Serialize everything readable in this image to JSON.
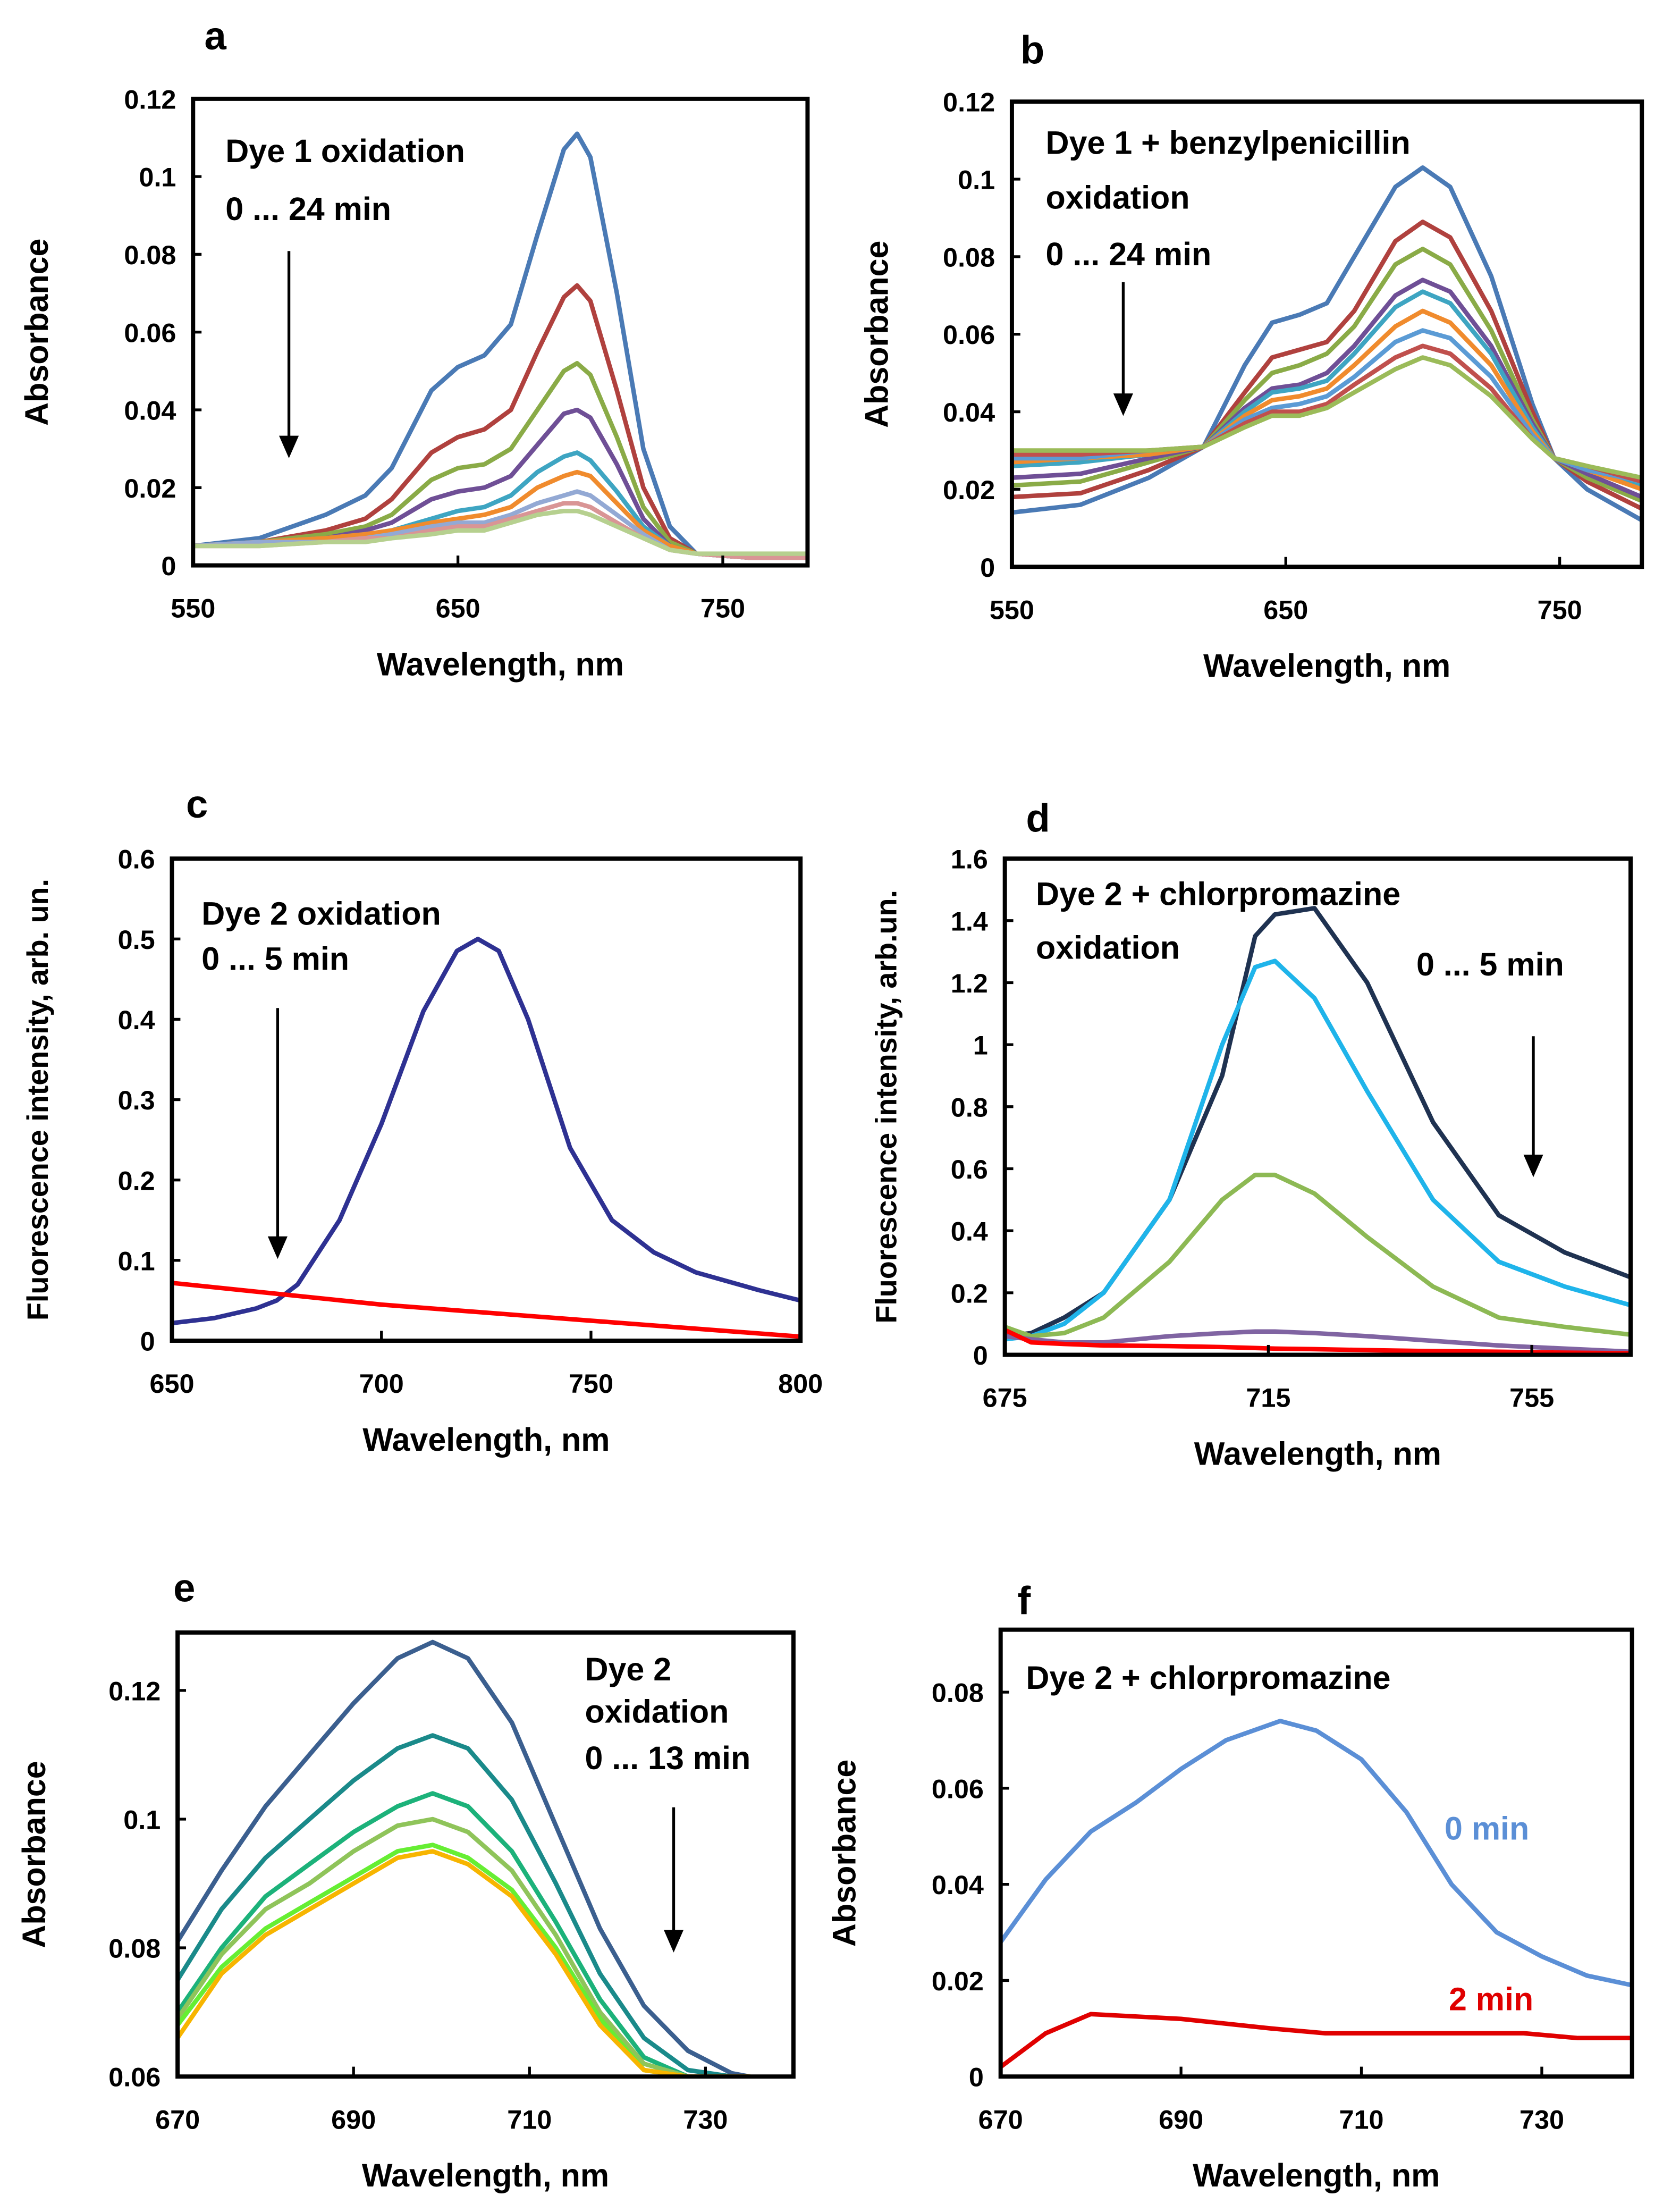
{
  "chart_data": [
    {
      "panel": "a",
      "type": "line",
      "xlabel": "Wavelength, nm",
      "ylabel": "Absorbance",
      "xlim": [
        550,
        782
      ],
      "ylim": [
        0,
        0.12
      ],
      "xticks": [
        550,
        650,
        750
      ],
      "xtick_labels": [
        "550",
        "650",
        "750"
      ],
      "yticks": [
        0,
        0.02,
        0.04,
        0.06,
        0.08,
        0.1,
        0.12
      ],
      "ytick_labels": [
        "0",
        "0.02",
        "0.04",
        "0.06",
        "0.08",
        "0.1",
        "0.12"
      ],
      "annotations": [
        "Dye 1 oxidation",
        "0 ... 24 min"
      ],
      "arrow": "down",
      "grid": false,
      "legend": "none",
      "x": [
        550,
        575,
        600,
        615,
        625,
        640,
        650,
        660,
        670,
        680,
        690,
        695,
        700,
        710,
        720,
        730,
        740,
        760,
        782
      ],
      "series": [
        {
          "color": "#4a7ab5",
          "values": [
            0.005,
            0.007,
            0.013,
            0.018,
            0.025,
            0.045,
            0.051,
            0.054,
            0.062,
            0.085,
            0.107,
            0.111,
            0.105,
            0.07,
            0.03,
            0.01,
            0.003,
            0.002,
            0.002
          ]
        },
        {
          "color": "#b0413e",
          "values": [
            0.005,
            0.006,
            0.009,
            0.012,
            0.017,
            0.029,
            0.033,
            0.035,
            0.04,
            0.055,
            0.069,
            0.072,
            0.068,
            0.045,
            0.02,
            0.007,
            0.003,
            0.002,
            0.002
          ]
        },
        {
          "color": "#8aab47",
          "values": [
            0.005,
            0.006,
            0.008,
            0.01,
            0.013,
            0.022,
            0.025,
            0.026,
            0.03,
            0.04,
            0.05,
            0.052,
            0.049,
            0.033,
            0.015,
            0.006,
            0.003,
            0.002,
            0.002
          ]
        },
        {
          "color": "#6f4f96",
          "values": [
            0.005,
            0.006,
            0.007,
            0.009,
            0.011,
            0.017,
            0.019,
            0.02,
            0.023,
            0.031,
            0.039,
            0.04,
            0.038,
            0.026,
            0.012,
            0.005,
            0.003,
            0.002,
            0.002
          ]
        },
        {
          "color": "#3ea5c2",
          "values": [
            0.005,
            0.006,
            0.007,
            0.008,
            0.009,
            0.012,
            0.014,
            0.015,
            0.018,
            0.024,
            0.028,
            0.029,
            0.027,
            0.019,
            0.01,
            0.005,
            0.003,
            0.002,
            0.002
          ]
        },
        {
          "color": "#f08b2d",
          "values": [
            0.005,
            0.006,
            0.007,
            0.008,
            0.009,
            0.011,
            0.012,
            0.013,
            0.015,
            0.02,
            0.023,
            0.024,
            0.023,
            0.016,
            0.009,
            0.005,
            0.003,
            0.002,
            0.002
          ]
        },
        {
          "color": "#93a9d4",
          "values": [
            0.005,
            0.006,
            0.006,
            0.007,
            0.008,
            0.01,
            0.011,
            0.011,
            0.013,
            0.016,
            0.018,
            0.019,
            0.018,
            0.013,
            0.008,
            0.004,
            0.003,
            0.002,
            0.002
          ]
        },
        {
          "color": "#d99595",
          "values": [
            0.005,
            0.005,
            0.006,
            0.007,
            0.007,
            0.009,
            0.01,
            0.01,
            0.012,
            0.014,
            0.016,
            0.016,
            0.015,
            0.011,
            0.007,
            0.004,
            0.003,
            0.002,
            0.002
          ]
        },
        {
          "color": "#b6d08f",
          "values": [
            0.005,
            0.005,
            0.006,
            0.006,
            0.007,
            0.008,
            0.009,
            0.009,
            0.011,
            0.013,
            0.014,
            0.014,
            0.013,
            0.01,
            0.007,
            0.004,
            0.003,
            0.003,
            0.003
          ]
        }
      ]
    },
    {
      "panel": "b",
      "type": "line",
      "xlabel": "Wavelength, nm",
      "ylabel": "Absorbance",
      "xlim": [
        550,
        780
      ],
      "ylim": [
        0,
        0.12
      ],
      "xticks": [
        550,
        650,
        750
      ],
      "xtick_labels": [
        "550",
        "650",
        "750"
      ],
      "yticks": [
        0,
        0.02,
        0.04,
        0.06,
        0.08,
        0.1,
        0.12
      ],
      "ytick_labels": [
        "0",
        "0.02",
        "0.04",
        "0.06",
        "0.08",
        "0.1",
        "0.12"
      ],
      "annotations": [
        "Dye 1 + benzylpenicillin",
        "oxidation",
        "0 ... 24 min"
      ],
      "arrow": "down",
      "grid": false,
      "legend": "none",
      "x": [
        550,
        575,
        600,
        620,
        635,
        645,
        655,
        665,
        675,
        690,
        700,
        710,
        725,
        740,
        748,
        760,
        780
      ],
      "series": [
        {
          "color": "#4a7ab5",
          "values": [
            0.014,
            0.016,
            0.023,
            0.031,
            0.052,
            0.063,
            0.065,
            0.068,
            0.08,
            0.098,
            0.103,
            0.098,
            0.075,
            0.042,
            0.028,
            0.02,
            0.012
          ]
        },
        {
          "color": "#b0413e",
          "values": [
            0.018,
            0.019,
            0.025,
            0.031,
            0.045,
            0.054,
            0.056,
            0.058,
            0.066,
            0.084,
            0.089,
            0.085,
            0.066,
            0.04,
            0.028,
            0.022,
            0.015
          ]
        },
        {
          "color": "#8aab47",
          "values": [
            0.021,
            0.022,
            0.027,
            0.031,
            0.043,
            0.05,
            0.052,
            0.055,
            0.062,
            0.078,
            0.082,
            0.078,
            0.061,
            0.038,
            0.028,
            0.023,
            0.017
          ]
        },
        {
          "color": "#6f4f96",
          "values": [
            0.023,
            0.024,
            0.028,
            0.031,
            0.041,
            0.046,
            0.047,
            0.05,
            0.057,
            0.07,
            0.074,
            0.071,
            0.057,
            0.037,
            0.028,
            0.024,
            0.018
          ]
        },
        {
          "color": "#3ea5c2",
          "values": [
            0.026,
            0.027,
            0.029,
            0.031,
            0.04,
            0.045,
            0.046,
            0.048,
            0.055,
            0.067,
            0.071,
            0.068,
            0.055,
            0.036,
            0.028,
            0.025,
            0.021
          ]
        },
        {
          "color": "#f08b2d",
          "values": [
            0.027,
            0.028,
            0.029,
            0.031,
            0.039,
            0.043,
            0.044,
            0.046,
            0.052,
            0.062,
            0.066,
            0.063,
            0.052,
            0.035,
            0.028,
            0.025,
            0.02
          ]
        },
        {
          "color": "#5b9bd5",
          "values": [
            0.028,
            0.028,
            0.03,
            0.031,
            0.038,
            0.041,
            0.042,
            0.044,
            0.049,
            0.058,
            0.061,
            0.059,
            0.049,
            0.034,
            0.028,
            0.025,
            0.022
          ]
        },
        {
          "color": "#c0504d",
          "values": [
            0.029,
            0.029,
            0.03,
            0.031,
            0.037,
            0.04,
            0.04,
            0.042,
            0.047,
            0.054,
            0.057,
            0.055,
            0.046,
            0.033,
            0.028,
            0.026,
            0.022
          ]
        },
        {
          "color": "#9bbb59",
          "values": [
            0.03,
            0.03,
            0.03,
            0.031,
            0.036,
            0.039,
            0.039,
            0.041,
            0.045,
            0.051,
            0.054,
            0.052,
            0.044,
            0.033,
            0.028,
            0.026,
            0.023
          ]
        }
      ]
    },
    {
      "panel": "c",
      "type": "line",
      "xlabel": "Wavelength, nm",
      "ylabel": "Fluorescence intensity, arb. un.",
      "xlim": [
        650,
        800
      ],
      "ylim": [
        0,
        0.6
      ],
      "xticks": [
        650,
        700,
        750,
        800
      ],
      "xtick_labels": [
        "650",
        "700",
        "750",
        "800"
      ],
      "yticks": [
        0,
        0.1,
        0.2,
        0.3,
        0.4,
        0.5,
        0.6
      ],
      "ytick_labels": [
        "0",
        "0.1",
        "0.2",
        "0.3",
        "0.4",
        "0.5",
        "0.6"
      ],
      "annotations": [
        "Dye 2 oxidation",
        "0 ... 5 min"
      ],
      "arrow": "down",
      "grid": false,
      "legend": "none",
      "series": [
        {
          "color": "#2e3192",
          "x": [
            650,
            660,
            670,
            675,
            680,
            690,
            700,
            710,
            718,
            723,
            728,
            735,
            745,
            755,
            765,
            775,
            790,
            800
          ],
          "values": [
            0.022,
            0.028,
            0.04,
            0.05,
            0.07,
            0.15,
            0.27,
            0.41,
            0.485,
            0.5,
            0.485,
            0.4,
            0.24,
            0.15,
            0.11,
            0.085,
            0.063,
            0.05
          ]
        },
        {
          "color": "#ff0000",
          "x": [
            650,
            700,
            750,
            800
          ],
          "values": [
            0.072,
            0.045,
            0.025,
            0.005
          ]
        }
      ]
    },
    {
      "panel": "d",
      "type": "line",
      "xlabel": "Wavelength, nm",
      "ylabel": "Fluorescence intensity, arb.un.",
      "xlim": [
        675,
        770
      ],
      "ylim": [
        0,
        1.6
      ],
      "xticks": [
        675,
        715,
        755
      ],
      "xtick_labels": [
        "675",
        "715",
        "755"
      ],
      "yticks": [
        0,
        0.2,
        0.4,
        0.6,
        0.8,
        1,
        1.2,
        1.4,
        1.6
      ],
      "ytick_labels": [
        "0",
        "0.2",
        "0.4",
        "0.6",
        "0.8",
        "1",
        "1.2",
        "1.4",
        "1.6"
      ],
      "annotations": [
        "Dye 2 + chlorpromazine",
        "oxidation",
        "0 ... 5 min"
      ],
      "arrow": "down",
      "grid": false,
      "legend": "none",
      "x": [
        675,
        679,
        684,
        690,
        700,
        708,
        713,
        716,
        722,
        730,
        740,
        750,
        760,
        770
      ],
      "series": [
        {
          "color": "#1f3251",
          "values": [
            0.06,
            0.07,
            0.12,
            0.2,
            0.5,
            0.9,
            1.35,
            1.42,
            1.44,
            1.2,
            0.75,
            0.45,
            0.33,
            0.25
          ]
        },
        {
          "color": "#1fb4ea",
          "values": [
            0.05,
            0.06,
            0.1,
            0.2,
            0.5,
            1.0,
            1.25,
            1.27,
            1.15,
            0.85,
            0.5,
            0.3,
            0.22,
            0.16
          ]
        },
        {
          "color": "#8db954",
          "values": [
            0.09,
            0.06,
            0.07,
            0.12,
            0.3,
            0.5,
            0.58,
            0.58,
            0.52,
            0.38,
            0.22,
            0.12,
            0.09,
            0.065
          ]
        },
        {
          "color": "#8064a2",
          "values": [
            0.06,
            0.05,
            0.04,
            0.04,
            0.06,
            0.07,
            0.075,
            0.075,
            0.07,
            0.06,
            0.045,
            0.03,
            0.02,
            0.01
          ]
        },
        {
          "color": "#ff0000",
          "values": [
            0.08,
            0.04,
            0.035,
            0.03,
            0.028,
            0.025,
            0.022,
            0.02,
            0.018,
            0.015,
            0.012,
            0.01,
            0.007,
            0.005
          ]
        }
      ]
    },
    {
      "panel": "e",
      "type": "line",
      "xlabel": "Wavelength, nm",
      "ylabel": "Absorbance",
      "xlim": [
        670,
        740
      ],
      "ylim": [
        0.06,
        0.129
      ],
      "xticks": [
        670,
        690,
        710,
        730
      ],
      "xtick_labels": [
        "670",
        "690",
        "710",
        "730"
      ],
      "yticks": [
        0.06,
        0.08,
        0.1,
        0.12
      ],
      "ytick_labels": [
        "0.06",
        "0.08",
        "0.1",
        "0.12"
      ],
      "annotations": [
        "Dye 2",
        "oxidation",
        "0 ... 13 min"
      ],
      "arrow": "down",
      "grid": false,
      "legend": "none",
      "x": [
        670,
        675,
        680,
        685,
        690,
        695,
        699,
        703,
        708,
        713,
        718,
        723,
        728,
        733,
        735
      ],
      "series": [
        {
          "color": "#3b5f8f",
          "values": [
            0.081,
            0.092,
            0.102,
            0.11,
            0.118,
            0.125,
            0.1275,
            0.125,
            0.115,
            0.099,
            0.083,
            0.071,
            0.064,
            0.0605,
            0.06
          ]
        },
        {
          "color": "#1a8a8a",
          "values": [
            0.075,
            0.086,
            0.094,
            0.1,
            0.106,
            0.111,
            0.113,
            0.111,
            0.103,
            0.09,
            0.076,
            0.066,
            0.061,
            0.06,
            0.06
          ]
        },
        {
          "color": "#1cb27a",
          "values": [
            0.07,
            0.08,
            0.088,
            0.093,
            0.098,
            0.102,
            0.104,
            0.102,
            0.095,
            0.084,
            0.072,
            0.063,
            0.06,
            0.06,
            0.06
          ]
        },
        {
          "color": "#8fc45a",
          "values": [
            0.069,
            0.079,
            0.086,
            0.09,
            0.095,
            0.099,
            0.1,
            0.098,
            0.092,
            0.082,
            0.07,
            0.062,
            0.06,
            0.06,
            0.06
          ]
        },
        {
          "color": "#66ee33",
          "values": [
            0.068,
            0.077,
            0.083,
            0.087,
            0.091,
            0.095,
            0.096,
            0.094,
            0.089,
            0.08,
            0.069,
            0.061,
            0.06,
            0.06,
            0.06
          ]
        },
        {
          "color": "#f7b500",
          "values": [
            0.066,
            0.076,
            0.082,
            0.086,
            0.09,
            0.094,
            0.095,
            0.093,
            0.088,
            0.079,
            0.068,
            0.061,
            0.06,
            0.06,
            0.06
          ]
        }
      ]
    },
    {
      "panel": "f",
      "type": "line",
      "xlabel": "Wavelength, nm",
      "ylabel": "Absorbance",
      "xlim": [
        670,
        740
      ],
      "ylim": [
        0,
        0.093
      ],
      "xticks": [
        670,
        690,
        710,
        730
      ],
      "xtick_labels": [
        "670",
        "690",
        "710",
        "730"
      ],
      "yticks": [
        0,
        0.02,
        0.04,
        0.06,
        0.08
      ],
      "ytick_labels": [
        "0",
        "0.02",
        "0.04",
        "0.06",
        "0.08"
      ],
      "annotations": [
        "Dye 2 + chlorpromazine"
      ],
      "grid": false,
      "legend": "inline",
      "series": [
        {
          "name": "0 min",
          "color": "#5b8fd6",
          "x": [
            670,
            675,
            680,
            685,
            690,
            695,
            701,
            705,
            710,
            715,
            720,
            725,
            730,
            735,
            740
          ],
          "values": [
            0.028,
            0.041,
            0.051,
            0.057,
            0.064,
            0.07,
            0.074,
            0.072,
            0.066,
            0.055,
            0.04,
            0.03,
            0.025,
            0.021,
            0.019
          ]
        },
        {
          "name": "2 min",
          "color": "#e00000",
          "x": [
            670,
            675,
            680,
            690,
            700,
            706,
            720,
            728,
            734,
            740
          ],
          "values": [
            0.002,
            0.009,
            0.013,
            0.012,
            0.01,
            0.009,
            0.009,
            0.009,
            0.008,
            0.008
          ]
        }
      ]
    }
  ]
}
